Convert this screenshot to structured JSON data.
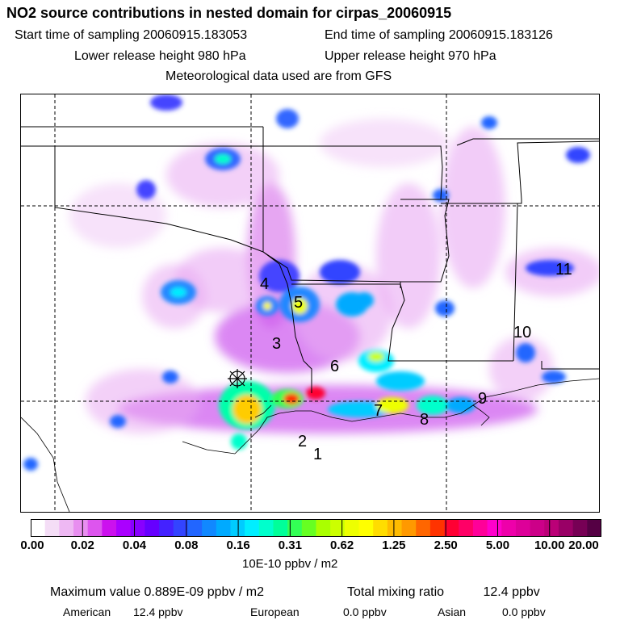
{
  "title": "NO2 source contributions in nested domain for cirpas_20060915",
  "header": {
    "start_label": "Start time of sampling 20060915.183053",
    "end_label": "End time of sampling 20060915.183126",
    "lower_label": "Lower release height  980 hPa",
    "upper_label": "Upper release height  970 hPa",
    "met_label": "Meteorological data used are from GFS"
  },
  "map": {
    "source_marker": "source-marker-icon",
    "labels": [
      "4",
      "5",
      "3",
      "6",
      "7",
      "8",
      "9",
      "2",
      "1",
      "10",
      "11"
    ]
  },
  "colorbar": {
    "ticks": [
      "0.00",
      "0.02",
      "0.04",
      "0.08",
      "0.16",
      "0.31",
      "0.62",
      "1.25",
      "2.50",
      "5.00",
      "10.00",
      "20.00"
    ],
    "colors": [
      "#ffffff",
      "#f4ddf6",
      "#eeb8f3",
      "#e88ef0",
      "#dd55ee",
      "#cc11ee",
      "#aa00ff",
      "#8800ff",
      "#6600ff",
      "#4422ff",
      "#3344ff",
      "#2266ff",
      "#1188ff",
      "#00aaff",
      "#00ccff",
      "#00eeff",
      "#00ffcc",
      "#00ff99",
      "#33ff55",
      "#66ff22",
      "#aaff00",
      "#ccff00",
      "#eeff00",
      "#ffff00",
      "#ffdd00",
      "#ffbb00",
      "#ff9900",
      "#ff6600",
      "#ff3300",
      "#ff0033",
      "#ff0066",
      "#ff0099",
      "#ff00cc",
      "#ee00aa",
      "#dd0099",
      "#cc0088",
      "#bb0077",
      "#990066",
      "#770055",
      "#550044"
    ],
    "units": "10E-10 ppbv / m2"
  },
  "footer": {
    "max_label": "Maximum value  0.889E-09 ppbv / m2",
    "total_label": "Total mixing ratio",
    "total_value": "12.4 ppbv",
    "american_label": "American",
    "american_value": "12.4 ppbv",
    "european_label": "European",
    "european_value": "0.0 ppbv",
    "asian_label": "Asian",
    "asian_value": "0.0 ppbv"
  }
}
